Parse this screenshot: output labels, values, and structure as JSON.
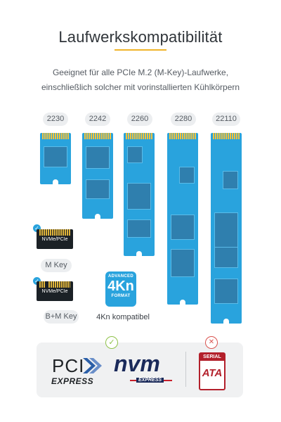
{
  "header": {
    "title": "Laufwerkskompatibilität",
    "subtitle_line1": "Geeignet für alle PCIe M.2 (M-Key)-Laufwerke,",
    "subtitle_line2": "einschließlich solcher mit vorinstallierten Kühlkörpern"
  },
  "drives": {
    "sizes": [
      "2230",
      "2242",
      "2260",
      "2280",
      "22110"
    ]
  },
  "keys": {
    "m_key_connector": "NVMe/PCIe",
    "m_key_label": "M Key",
    "bm_key_connector": "NVMe/PCIe",
    "bm_key_label": "B+M Key",
    "check_symbol": "✓"
  },
  "format": {
    "badge_top": "ADVANCED",
    "badge_main": "4Kn",
    "badge_bottom": "FORMAT",
    "label": "4Kn kompatibel"
  },
  "compat": {
    "supported_symbol": "✓",
    "unsupported_symbol": "✕",
    "pci_word": "PCI",
    "express_word": "EXPRESS",
    "nvm_word": "nvm",
    "nvm_express_word": "EXPRESS",
    "serial_word": "SERIAL",
    "ata_word": "ATA"
  },
  "colors": {
    "accent": "#f0b429",
    "drive_blue": "#29a3dd",
    "chip_blue": "#2f7fae",
    "ok_green": "#8fc24a",
    "no_red": "#d9534f",
    "sata_red": "#b3202b",
    "nvm_navy": "#1a2a5a"
  }
}
